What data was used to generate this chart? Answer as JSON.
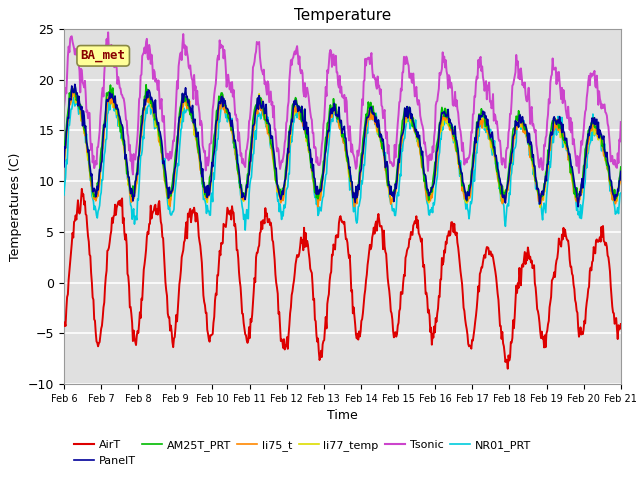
{
  "title": "Temperature",
  "ylabel": "Temperatures (C)",
  "xlabel": "Time",
  "ylim": [
    -10,
    25
  ],
  "annotation": "BA_met",
  "background_color": "#e0e0e0",
  "series": {
    "AirT": {
      "color": "#dd0000",
      "lw": 1.4
    },
    "PanelT": {
      "color": "#000099",
      "lw": 1.2
    },
    "AM25T_PRT": {
      "color": "#00bb00",
      "lw": 1.2
    },
    "li75_t": {
      "color": "#ff8800",
      "lw": 1.2
    },
    "li77_temp": {
      "color": "#dddd00",
      "lw": 1.2
    },
    "Tsonic": {
      "color": "#cc44cc",
      "lw": 1.4
    },
    "NR01_PRT": {
      "color": "#00ccdd",
      "lw": 1.2
    }
  },
  "xtick_labels": [
    "Feb 6",
    "Feb 7",
    "Feb 8",
    "Feb 9",
    "Feb 10",
    "Feb 11",
    "Feb 12",
    "Feb 13",
    "Feb 14",
    "Feb 15",
    "Feb 16",
    "Feb 17",
    "Feb 18",
    "Feb 19",
    "Feb 20",
    "Feb 21"
  ],
  "ytick_values": [
    -10,
    -5,
    0,
    5,
    10,
    15,
    20,
    25
  ],
  "n_points": 720
}
